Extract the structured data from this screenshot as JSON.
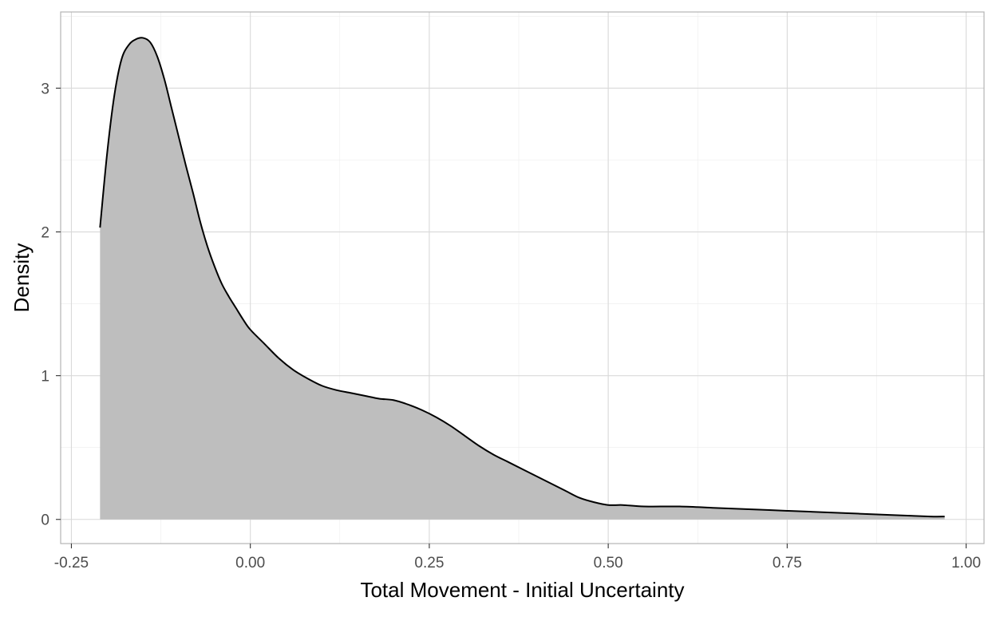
{
  "chart_data": {
    "type": "area",
    "title": "",
    "xlabel": "Total Movement - Initial Uncertainty",
    "ylabel": "Density",
    "xlim": [
      -0.265,
      1.025
    ],
    "ylim": [
      -0.168,
      3.53
    ],
    "x_ticks": [
      -0.25,
      0.0,
      0.25,
      0.5,
      0.75,
      1.0
    ],
    "x_tick_labels": [
      "-0.25",
      "0.00",
      "0.25",
      "0.50",
      "0.75",
      "1.00"
    ],
    "y_ticks": [
      0,
      1,
      2,
      3
    ],
    "y_tick_labels": [
      "0",
      "1",
      "2",
      "3"
    ],
    "grid": true,
    "legend": "none",
    "colors": {
      "fill": "#bebebe",
      "line": "#000000",
      "panel_border": "#b3b3b3"
    },
    "series": [
      {
        "x": [
          -0.21,
          -0.2,
          -0.19,
          -0.18,
          -0.17,
          -0.16,
          -0.15,
          -0.14,
          -0.13,
          -0.12,
          -0.11,
          -0.1,
          -0.09,
          -0.08,
          -0.07,
          -0.06,
          -0.05,
          -0.04,
          -0.03,
          -0.02,
          -0.01,
          0.0,
          0.02,
          0.04,
          0.06,
          0.08,
          0.1,
          0.12,
          0.14,
          0.16,
          0.18,
          0.2,
          0.22,
          0.24,
          0.26,
          0.28,
          0.3,
          0.32,
          0.34,
          0.36,
          0.38,
          0.4,
          0.42,
          0.44,
          0.46,
          0.48,
          0.5,
          0.52,
          0.55,
          0.6,
          0.65,
          0.7,
          0.75,
          0.8,
          0.85,
          0.9,
          0.95,
          0.97
        ],
        "y": [
          2.03,
          2.55,
          2.95,
          3.2,
          3.3,
          3.34,
          3.35,
          3.32,
          3.22,
          3.06,
          2.86,
          2.66,
          2.46,
          2.27,
          2.07,
          1.9,
          1.76,
          1.64,
          1.55,
          1.47,
          1.39,
          1.32,
          1.22,
          1.12,
          1.04,
          0.98,
          0.93,
          0.9,
          0.88,
          0.86,
          0.84,
          0.83,
          0.8,
          0.76,
          0.71,
          0.65,
          0.58,
          0.51,
          0.45,
          0.4,
          0.35,
          0.3,
          0.25,
          0.2,
          0.15,
          0.12,
          0.1,
          0.1,
          0.09,
          0.09,
          0.08,
          0.07,
          0.06,
          0.05,
          0.04,
          0.03,
          0.02,
          0.02
        ]
      }
    ]
  }
}
